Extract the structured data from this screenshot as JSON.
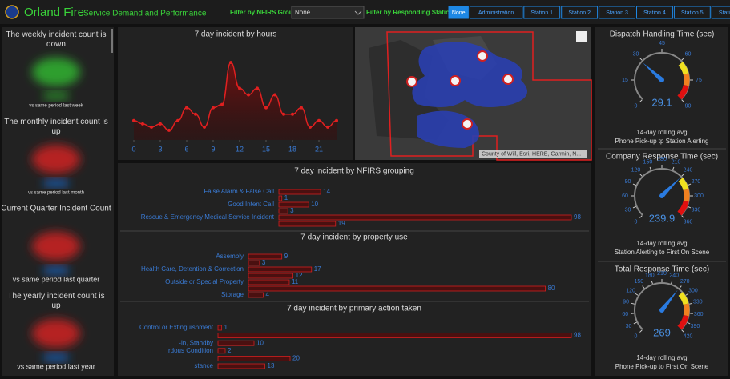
{
  "header": {
    "title": "Orland Fire",
    "subtitle": "Service Demand and Performance",
    "filter_group_label": "Filter by NFIRS Group",
    "filter_group_value": "None",
    "filter_station_label": "Filter by Responding Station:",
    "stations": [
      "None",
      "Administration",
      "Station 1",
      "Station 2",
      "Station 3",
      "Station 4",
      "Station 5",
      "Station 6",
      "Dispatch Center"
    ]
  },
  "indicators": [
    {
      "title": "The weekly incident count is down",
      "caption": "vs same period last week",
      "color": "#2e9e2e"
    },
    {
      "title": "The monthly incident count is up",
      "caption": "vs same period last month",
      "color": "#b52020"
    },
    {
      "title": "Current Quarter Incident Count",
      "caption": "vs same period last quarter",
      "color": "#b52020"
    },
    {
      "title": "The yearly incident count is up",
      "caption": "vs same period last year",
      "color": "#b52020"
    }
  ],
  "hourly_chart": {
    "type": "line",
    "title": "7 day incident by hours",
    "x": [
      0,
      1,
      2,
      3,
      4,
      5,
      6,
      7,
      8,
      9,
      10,
      11,
      12,
      13,
      14,
      15,
      16,
      17,
      18,
      19,
      20,
      21,
      22,
      23
    ],
    "values": [
      3,
      2.5,
      2,
      2.5,
      1.5,
      3,
      5,
      4,
      2,
      5,
      5.5,
      12,
      8,
      7,
      8,
      5,
      7,
      4,
      4,
      5,
      2,
      3,
      2,
      3
    ],
    "xlim": [
      0,
      23
    ],
    "ylim": [
      0,
      14
    ],
    "xticks": [
      0,
      3,
      6,
      9,
      12,
      15,
      18,
      21
    ],
    "color": "#e02020"
  },
  "map": {
    "attribution": "County of Will, Esri, HERE, Garmin, N..."
  },
  "bar_charts": [
    {
      "type": "bar",
      "title": "7 day incident by NFIRS grouping",
      "categories": [
        "False Alarm & False Call",
        null,
        "Good Intent Call",
        null,
        "Rescue & Emergency Medical Service Incident",
        null
      ],
      "values": [
        14,
        1,
        10,
        3,
        98,
        19
      ],
      "xlim": [
        0,
        98
      ]
    },
    {
      "type": "bar",
      "title": "7 day incident by property use",
      "categories": [
        "Assembly",
        null,
        "Health Care, Detention & Correction",
        null,
        "Outside or Special Property",
        null,
        "Storage"
      ],
      "values": [
        9,
        3,
        17,
        12,
        11,
        80,
        4
      ],
      "xlim": [
        0,
        87
      ]
    },
    {
      "type": "bar",
      "title": "7 day incident by primary action taken",
      "categories": [
        "Control or Extinguishment",
        null,
        "-in, Standby",
        "rdous Condition",
        null,
        "stance"
      ],
      "values": [
        1,
        98,
        10,
        2,
        20,
        13
      ],
      "xlim": [
        0,
        98
      ]
    }
  ],
  "gauges": [
    {
      "title": "Dispatch Handling Time (sec)",
      "value": 29.1,
      "range": [
        0,
        90
      ],
      "ticks": [
        0,
        15,
        30,
        45,
        60,
        75,
        90
      ],
      "caption1": "14-day rolling avg",
      "caption2": "Phone Pick-up tp Station Alerting"
    },
    {
      "title": "Company Response Time (sec)",
      "value": 239.9,
      "range": [
        0,
        360
      ],
      "ticks": [
        0,
        30,
        60,
        90,
        120,
        150,
        180,
        210,
        240,
        270,
        300,
        330,
        360
      ],
      "caption1": "14-day rolling avg",
      "caption2": "Station Alerting to First On Scene"
    },
    {
      "title": "Total Response Time (sec)",
      "value": 269,
      "range": [
        0,
        420
      ],
      "ticks": [
        0,
        30,
        60,
        90,
        120,
        150,
        180,
        210,
        240,
        270,
        300,
        330,
        360,
        390,
        420
      ],
      "caption1": "14-day rolling avg",
      "caption2": "Phone Pick-up to First On Scene"
    }
  ]
}
